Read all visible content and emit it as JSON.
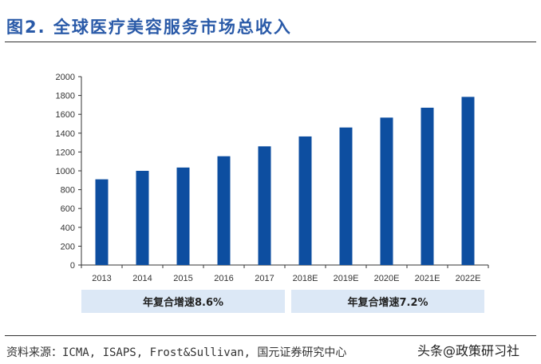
{
  "title": "图2. 全球医疗美容服务市场总收入",
  "chart_data": {
    "type": "bar",
    "title": "",
    "xlabel": "",
    "ylabel": "",
    "categories": [
      "2013",
      "2014",
      "2015",
      "2016",
      "2017",
      "2018E",
      "2019E",
      "2020E",
      "2021E",
      "2022E"
    ],
    "values": [
      910,
      1000,
      1035,
      1155,
      1260,
      1365,
      1460,
      1565,
      1670,
      1785
    ],
    "ylim": [
      0,
      2000
    ],
    "yticks": [
      0,
      200,
      400,
      600,
      800,
      1000,
      1200,
      1400,
      1600,
      1800,
      2000
    ],
    "grid": false,
    "bar_color": "#0d4ea0",
    "annotations": [
      "年复合增速8.6%",
      "年复合增速7.2%"
    ]
  },
  "source": "资料来源：ICMA, ISAPS, Frost&Sullivan, 国元证券研究中心",
  "watermark": "头条@政策研习社"
}
